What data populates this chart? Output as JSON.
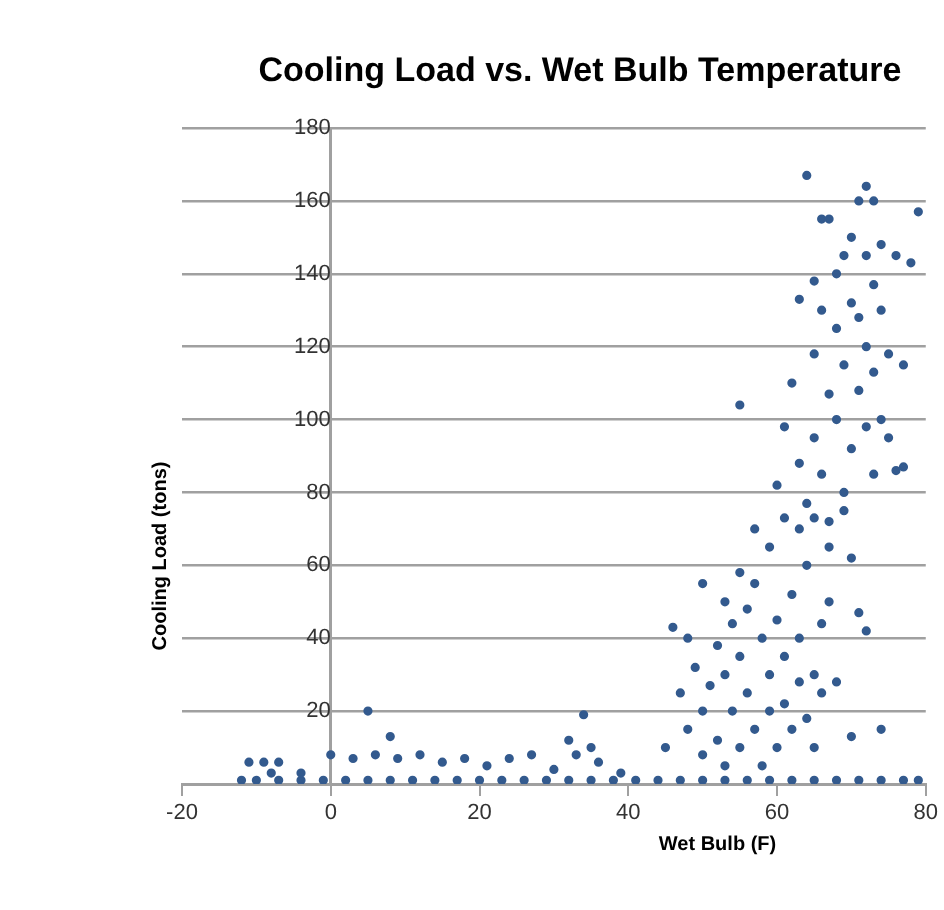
{
  "chart_data": {
    "type": "scatter",
    "title": "Cooling Load vs. Wet Bulb Temperature",
    "xlabel": "Wet Bulb (F)",
    "ylabel": "Cooling Load (tons)",
    "xlim": [
      -20,
      80
    ],
    "xticks": [
      -20,
      0,
      20,
      40,
      60,
      80
    ],
    "ylim": [
      0,
      180
    ],
    "yticks": [
      {
        "value": 0,
        "label": null
      },
      20,
      40,
      60,
      80,
      100,
      120,
      140,
      160,
      180
    ],
    "grid": "y",
    "marker": "circle",
    "legend": false,
    "series": [
      {
        "color": "#335a8e",
        "x": [
          -12,
          -10,
          -7,
          -4,
          -1,
          2,
          5,
          8,
          11,
          14,
          17,
          20,
          23,
          26,
          29,
          32,
          35,
          38,
          41,
          44,
          47,
          50,
          53,
          56,
          59,
          62,
          65,
          68,
          71,
          74,
          77,
          79,
          -11,
          -9,
          -7,
          -4,
          0,
          3,
          6,
          9,
          12,
          15,
          18,
          21,
          24,
          27,
          30,
          33,
          36,
          39,
          5,
          8,
          34,
          32,
          35,
          -8,
          45,
          46,
          47,
          48,
          49,
          50,
          50,
          51,
          52,
          52,
          53,
          53,
          54,
          54,
          55,
          55,
          56,
          56,
          57,
          57,
          58,
          58,
          59,
          59,
          60,
          60,
          61,
          61,
          62,
          62,
          63,
          63,
          64,
          64,
          65,
          65,
          66,
          66,
          67,
          68,
          70,
          72,
          74,
          50,
          48,
          55,
          57,
          59,
          61,
          63,
          65,
          67,
          69,
          70,
          71,
          53,
          55,
          60,
          61,
          62,
          63,
          64,
          65,
          65,
          66,
          66,
          67,
          67,
          68,
          68,
          68,
          69,
          69,
          69,
          70,
          70,
          70,
          71,
          71,
          71,
          72,
          72,
          72,
          72,
          73,
          73,
          73,
          73,
          74,
          74,
          74,
          75,
          75,
          76,
          77,
          79,
          78,
          64,
          66,
          63,
          65,
          76,
          67,
          77
        ],
        "values": [
          1,
          1,
          1,
          1,
          1,
          1,
          1,
          1,
          1,
          1,
          1,
          1,
          1,
          1,
          1,
          1,
          1,
          1,
          1,
          1,
          1,
          1,
          1,
          1,
          1,
          1,
          1,
          1,
          1,
          1,
          1,
          1,
          6,
          6,
          6,
          3,
          8,
          7,
          8,
          7,
          8,
          6,
          7,
          5,
          7,
          8,
          4,
          8,
          6,
          3,
          20,
          13,
          19,
          12,
          10,
          3,
          10,
          43,
          25,
          15,
          32,
          8,
          20,
          27,
          38,
          12,
          30,
          5,
          44,
          20,
          35,
          10,
          48,
          25,
          15,
          55,
          40,
          5,
          30,
          20,
          45,
          10,
          35,
          22,
          52,
          15,
          28,
          40,
          18,
          60,
          30,
          10,
          44,
          25,
          50,
          28,
          13,
          42,
          15,
          55,
          40,
          58,
          70,
          65,
          73,
          70,
          73,
          72,
          75,
          62,
          47,
          50,
          104,
          82,
          98,
          110,
          88,
          77,
          118,
          95,
          130,
          85,
          107,
          65,
          140,
          125,
          100,
          145,
          115,
          80,
          132,
          150,
          92,
          160,
          128,
          108,
          164,
          145,
          120,
          98,
          160,
          137,
          113,
          85,
          148,
          130,
          100,
          118,
          95,
          145,
          87,
          157,
          143,
          167,
          155,
          133,
          138,
          86,
          155,
          115
        ]
      }
    ]
  }
}
